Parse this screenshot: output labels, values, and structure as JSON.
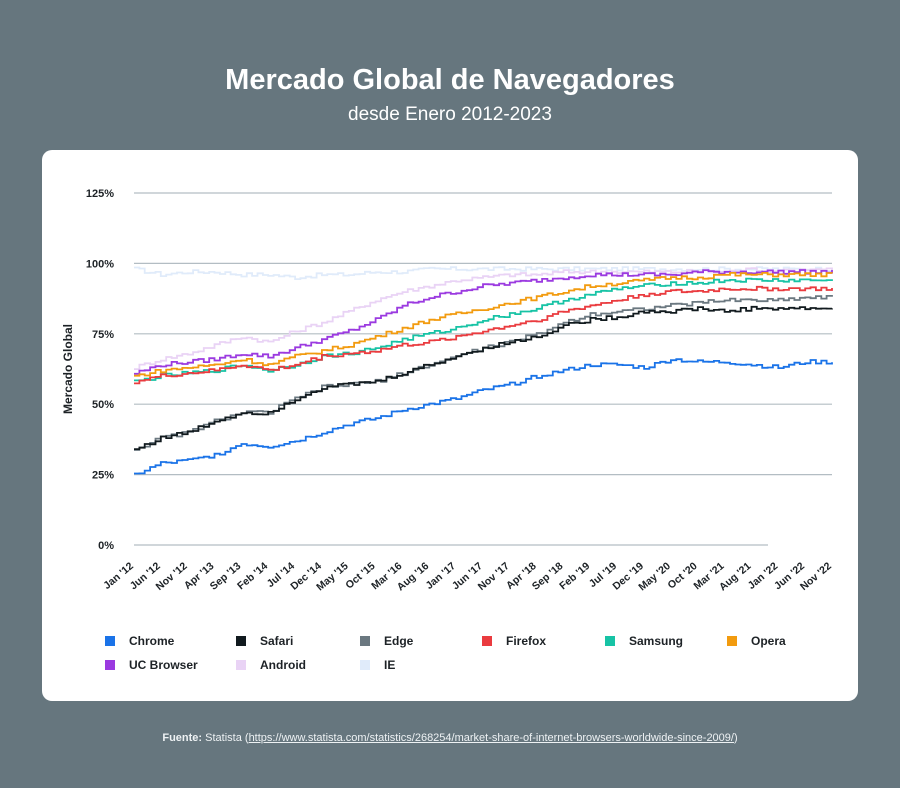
{
  "header": {
    "title": "Mercado Global de Navegadores",
    "subtitle": "desde Enero 2012-2023"
  },
  "source": {
    "label": "Fuente:",
    "name": "Statista",
    "url": "https://www.statista.com/statistics/268254/market-share-of-internet-browsers-worldwide-since-2009/"
  },
  "chart_data": {
    "type": "area",
    "title": "Mercado Global de Navegadores",
    "subtitle": "desde Enero 2012-2023",
    "xlabel": "",
    "ylabel": "Mercado Global",
    "ylim": [
      0,
      125
    ],
    "yticks": [
      "0%",
      "25%",
      "50%",
      "75%",
      "100%",
      "125%"
    ],
    "x_ticks": [
      "Jan '12",
      "Jun '12",
      "Nov '12",
      "Apr '13",
      "Sep '13",
      "Feb '14",
      "Jul '14",
      "Dec '14",
      "May '15",
      "Oct '15",
      "Mar '16",
      "Aug '16",
      "Jan '17",
      "Jun '17",
      "Nov '17",
      "Apr '18",
      "Sep '18",
      "Feb '19",
      "Jul '19",
      "Dec '19",
      "May '20",
      "Oct '20",
      "Mar '21",
      "Aug '21",
      "Jan '22",
      "Jun '22",
      "Nov '22"
    ],
    "stacked": true,
    "value_type": "cumulative_percent",
    "grid": true,
    "legend_position": "bottom",
    "series": [
      {
        "name": "Chrome",
        "color": "#1a73e8",
        "values": [
          25,
          29,
          30,
          32,
          36,
          35,
          37,
          40,
          43,
          45,
          48,
          50,
          52,
          55,
          57,
          60,
          62,
          64,
          64,
          63,
          66,
          65,
          65,
          64,
          63,
          65,
          65
        ]
      },
      {
        "name": "Safari",
        "color": "#111a1e",
        "values": [
          34,
          38,
          40,
          44,
          47,
          47,
          52,
          56,
          57,
          58,
          61,
          64,
          67,
          70,
          72,
          74,
          78,
          80,
          81,
          83,
          83,
          84,
          83,
          84,
          84,
          84,
          84
        ]
      },
      {
        "name": "Edge",
        "color": "#6b7880",
        "values": [
          34,
          38,
          40,
          44,
          47,
          47,
          52,
          56,
          57,
          58,
          61,
          64,
          67,
          70,
          72,
          75,
          79,
          82,
          83,
          84,
          85,
          86,
          87,
          87,
          87,
          88,
          88
        ]
      },
      {
        "name": "Firefox",
        "color": "#ea3b3f",
        "values": [
          58,
          60,
          61,
          62,
          64,
          62,
          64,
          67,
          68,
          69,
          71,
          72,
          74,
          76,
          78,
          80,
          83,
          85,
          87,
          89,
          90,
          90,
          91,
          91,
          91,
          91,
          91
        ]
      },
      {
        "name": "Samsung",
        "color": "#17c3a5",
        "values": [
          58,
          60,
          61,
          62,
          64,
          62,
          64,
          67,
          68,
          70,
          73,
          75,
          77,
          80,
          82,
          84,
          87,
          89,
          91,
          92,
          93,
          93,
          94,
          94,
          94,
          94,
          94
        ]
      },
      {
        "name": "Opera",
        "color": "#f29b0f",
        "values": [
          60,
          62,
          63,
          64,
          66,
          64,
          67,
          69,
          71,
          74,
          77,
          80,
          82,
          84,
          86,
          88,
          90,
          92,
          93,
          94,
          95,
          95,
          96,
          96,
          96,
          96,
          96
        ]
      },
      {
        "name": "UC Browser",
        "color": "#9b3ae0",
        "values": [
          61,
          64,
          65,
          66,
          68,
          67,
          70,
          73,
          76,
          80,
          85,
          88,
          90,
          92,
          93,
          94,
          95,
          96,
          96,
          96,
          96,
          97,
          97,
          97,
          97,
          97,
          97
        ]
      },
      {
        "name": "Android",
        "color": "#e9d3f5",
        "values": [
          63,
          66,
          68,
          71,
          74,
          72,
          76,
          79,
          83,
          87,
          90,
          92,
          94,
          95,
          96,
          96,
          97,
          97,
          97,
          97,
          97,
          97,
          97,
          98,
          97,
          98,
          98
        ]
      },
      {
        "name": "IE",
        "color": "#e0ebfa",
        "values": [
          98,
          96,
          97,
          97,
          96,
          96,
          95,
          96,
          96,
          97,
          97,
          98,
          98,
          98,
          98,
          98,
          98,
          98,
          98,
          98,
          98,
          98,
          98,
          98,
          98,
          98,
          98
        ]
      }
    ]
  }
}
